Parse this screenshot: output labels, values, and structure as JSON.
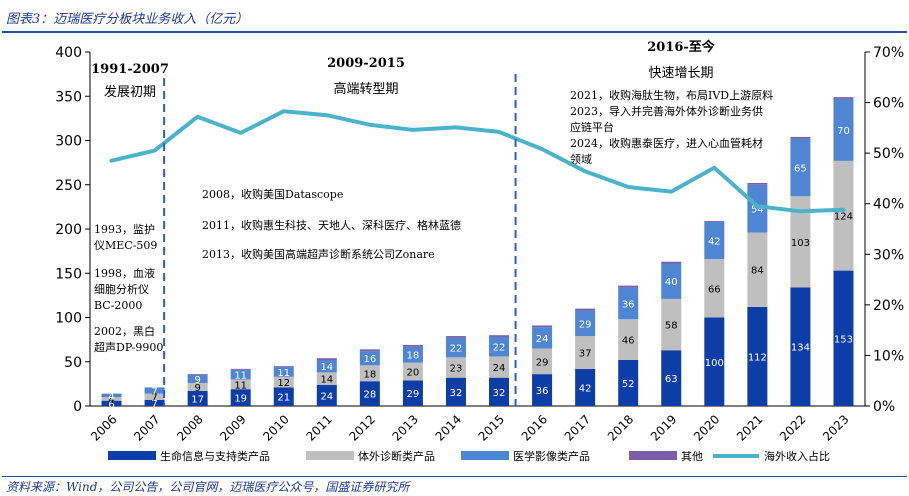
{
  "title": "图表3：迈瑞医疗分板块业务收入（亿元）",
  "source": "资料来源：Wind，公司公告，公司官网，迈瑞医疗公众号，国盛证券研究所",
  "colors": {
    "life": "#0d3ea8",
    "ivd": "#bfbfbf",
    "imaging": "#4f86d4",
    "other": "#7b5ea7",
    "overseas": "#4bb3c9",
    "divider": "#2b5bd7",
    "text": "#000000"
  },
  "chart_data": {
    "type": "bar",
    "stacked": true,
    "categories": [
      "2006",
      "2007",
      "2008",
      "2009",
      "2010",
      "2011",
      "2012",
      "2013",
      "2014",
      "2015",
      "2016",
      "2017",
      "2018",
      "2019",
      "2020",
      "2021",
      "2022",
      "2023"
    ],
    "series": [
      {
        "name": "生命信息与支持类产品",
        "values": [
          6,
          7,
          17,
          19,
          21,
          24,
          28,
          29,
          32,
          32,
          36,
          42,
          52,
          63,
          100,
          112,
          134,
          153
        ]
      },
      {
        "name": "体外诊断类产品",
        "values": [
          4,
          7,
          9,
          11,
          12,
          14,
          18,
          20,
          23,
          24,
          29,
          37,
          46,
          58,
          66,
          84,
          103,
          124
        ]
      },
      {
        "name": "医学影像类产品",
        "values": [
          4,
          7,
          9,
          11,
          11,
          14,
          16,
          18,
          22,
          22,
          24,
          29,
          36,
          40,
          42,
          54,
          65,
          70
        ]
      },
      {
        "name": "其他",
        "values": [
          0,
          0,
          1,
          1,
          1,
          2,
          2,
          2,
          2,
          2,
          2,
          2,
          2,
          2,
          1,
          2,
          2,
          2
        ]
      },
      {
        "name": "海外收入占比",
        "axis": "right",
        "kind": "line",
        "values": [
          48.5,
          50.5,
          57.2,
          54.0,
          58.3,
          57.5,
          55.6,
          54.6,
          55.1,
          54.2,
          50.8,
          46.4,
          43.3,
          42.4,
          47.1,
          39.5,
          38.5,
          38.8
        ]
      }
    ],
    "bar_labels": [
      [
        "6",
        "4",
        "4"
      ],
      [
        "7",
        "7",
        "7"
      ],
      [
        "17",
        "9",
        "9"
      ],
      [
        "19",
        "11",
        "11"
      ],
      [
        "21",
        "12",
        "11"
      ],
      [
        "24",
        "14",
        "14"
      ],
      [
        "28",
        "18",
        "16"
      ],
      [
        "29",
        "20",
        "18"
      ],
      [
        "32",
        "23",
        "22"
      ],
      [
        "32",
        "24",
        "22"
      ],
      [
        "36",
        "29",
        "24"
      ],
      [
        "42",
        "37",
        "29"
      ],
      [
        "52",
        "46",
        "36"
      ],
      [
        "63",
        "58",
        "40"
      ],
      [
        "100",
        "66",
        "42"
      ],
      [
        "112",
        "84",
        "54"
      ],
      [
        "134",
        "103",
        "65"
      ],
      [
        "153",
        "124",
        "70"
      ]
    ],
    "left_axis": {
      "min": 0,
      "max": 400,
      "ticks": [
        "0",
        "50",
        "100",
        "150",
        "200",
        "250",
        "300",
        "350",
        "400"
      ]
    },
    "right_axis": {
      "min": 0,
      "max": 70,
      "ticks": [
        "0%",
        "10%",
        "20%",
        "30%",
        "40%",
        "50%",
        "60%",
        "70%"
      ]
    },
    "grid": false,
    "legend": {
      "position": "bottom"
    },
    "periods": [
      {
        "label": "1991-2007",
        "sub": "发展初期"
      },
      {
        "label": "2009-2015",
        "sub": "高端转型期"
      },
      {
        "label": "2016-至今",
        "sub": "快速增长期"
      }
    ],
    "annotations": {
      "early": [
        "1993，监护",
        "仪MEC-509",
        "1998，血液",
        "细胞分析仪",
        "BC-2000",
        "2002，黑白",
        "超声DP-9900"
      ],
      "mid": [
        "2008，收购美国Datascope",
        "2011，收购惠生科技、天地人、深科医疗、格林蓝德",
        "2013，收购美国高端超声诊断系统公司Zonare"
      ],
      "late": [
        "2021，收购海肽生物，布局IVD上游原料",
        "2023，导入并完善海外体外诊断业务供",
        "应链平台",
        "2024，收购惠泰医疗，进入心血管耗材",
        "领域"
      ]
    }
  }
}
